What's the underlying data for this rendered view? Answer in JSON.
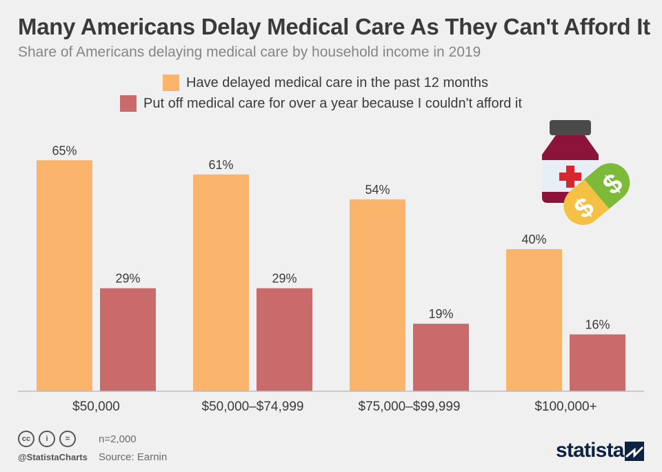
{
  "header": {
    "title": "Many Americans Delay Medical Care As They Can't Afford It",
    "subtitle": "Share of Americans delaying medical care by household income in 2019"
  },
  "chart_data": {
    "type": "bar",
    "title": "Many Americans Delay Medical Care As They Can't Afford It",
    "subtitle": "Share of Americans delaying medical care by household income in 2019",
    "categories": [
      "$50,000",
      "$50,000–$74,999",
      "$75,000–$99,999",
      "$100,000+"
    ],
    "series": [
      {
        "name": "Have delayed medical care in the past 12 months",
        "values": [
          65,
          61,
          54,
          40
        ],
        "color": "#fbb46c",
        "labels": [
          "65%",
          "61%",
          "54%",
          "40%"
        ]
      },
      {
        "name": "Put off medical care for over a year because I couldn't afford it",
        "values": [
          29,
          29,
          19,
          16
        ],
        "color": "#c96b6b",
        "labels": [
          "29%",
          "29%",
          "19%",
          "16%"
        ]
      }
    ],
    "xlabel": "",
    "ylabel": "",
    "ylim": [
      0,
      65
    ],
    "grid": false,
    "legend": "top-center"
  },
  "footer": {
    "cc_labels": [
      "cc",
      "i",
      "="
    ],
    "handle": "@StatistaCharts",
    "sample": "n=2,000",
    "source": "Source: Earnin",
    "brand": "statista"
  },
  "colors": {
    "accent_bar": "#fbb46c",
    "secondary_bar": "#c96b6b",
    "brand": "#0d2240"
  }
}
